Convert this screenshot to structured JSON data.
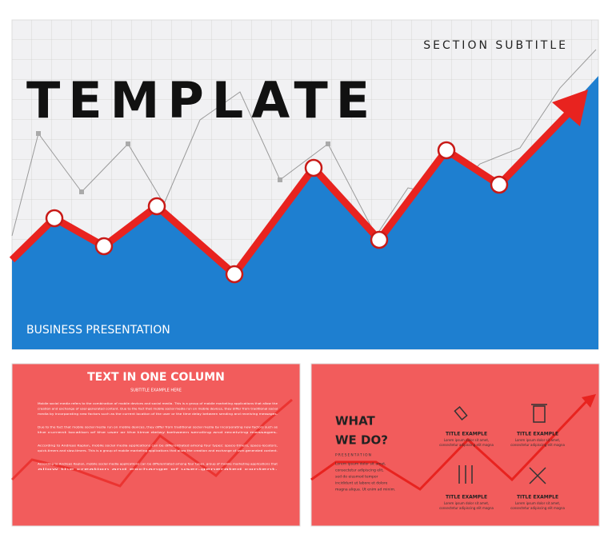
{
  "slide_main": {
    "subtitle": "SECTION SUBTITLE",
    "title": "TEMPLATE",
    "footer": "BUSINESS PRESENTATION"
  },
  "slide_text": {
    "title": "TEXT IN ONE COLUMN",
    "subtitle": "SUBTITLE EXAMPLE HERE",
    "paragraphs": [
      [
        "Mobile social media refers to the combination of mobile devices and social media. This is a group of mobile marketing applications that allow the",
        "creation and exchange of user-generated content. Due to the fact that mobile social media run on mobile devices, they differ from traditional social",
        "media by incorporating new factors such as the current location of the user or the time delay between sending and receiving messages."
      ],
      [
        "Due to the fact that mobile social media run on mobile devices, they differ from traditional social media by incorporating new factors such as",
        "the current location of the user or the time delay between sending and receiving messages."
      ],
      [
        "According to Andreas Kaplan, mobile social media applications can be differentiated among four types: space-timers, space-locators,",
        "quick-timers and slow-timers. This is a group of mobile marketing applications that allow the creation and exchange of user-generated content."
      ],
      [
        "According to Andreas Kaplan, mobile social media applications can be differentiated among four types. group of mobile marketing applications that",
        "allow the creation and exchange of user-generated content."
      ]
    ]
  },
  "slide_what": {
    "title_line1": "WHAT",
    "title_line2": "WE DO?",
    "label": "PRESENTATION",
    "description": [
      "Lorem ipsum dolor sit amet,",
      "consectetur adipiscing elit,",
      "sed do eiusmod tempor",
      "incididunt ut labore et dolore",
      "magna aliqua. Ut enim ad minim."
    ],
    "items": [
      {
        "title": "TITLE EXAMPLE",
        "text": [
          "Lorem ipsum dolor sit amet,",
          "consectetur adipiscing elit magna"
        ]
      },
      {
        "title": "TITLE EXAMPLE",
        "text": [
          "Lorem ipsum dolor sit amet,",
          "consectetur adipiscing elit magna"
        ]
      },
      {
        "title": "TITLE EXAMPLE",
        "text": [
          "Lorem ipsum dolor sit amet,",
          "consectetur adipiscing elit magna"
        ]
      },
      {
        "title": "TITLE EXAMPLE",
        "text": [
          "Lorem ipsum dolor sit amet,",
          "consectetur adipiscing elit magna"
        ]
      }
    ]
  }
}
